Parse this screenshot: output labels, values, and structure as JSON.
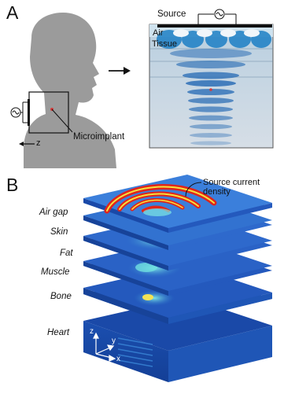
{
  "panel_a": {
    "letter": "A",
    "axis_label": "z",
    "microimplant_label": "Microimplant",
    "source_label": "Source",
    "air_label": "Air",
    "tissue_label": "Tissue"
  },
  "panel_b": {
    "letter": "B",
    "source_density_label": "Source current\ndensity",
    "layers": [
      "Air gap",
      "Skin",
      "Fat",
      "Muscle",
      "Bone",
      "Heart"
    ],
    "axes": {
      "z": "z",
      "y": "y",
      "x": "x"
    }
  },
  "colors": {
    "silhouette": "#9a9a9a",
    "field_blue": "#1f78c8",
    "field_dark": "#0b3a8c",
    "hot_red": "#e0251b",
    "hot_yellow": "#f7e03b"
  }
}
